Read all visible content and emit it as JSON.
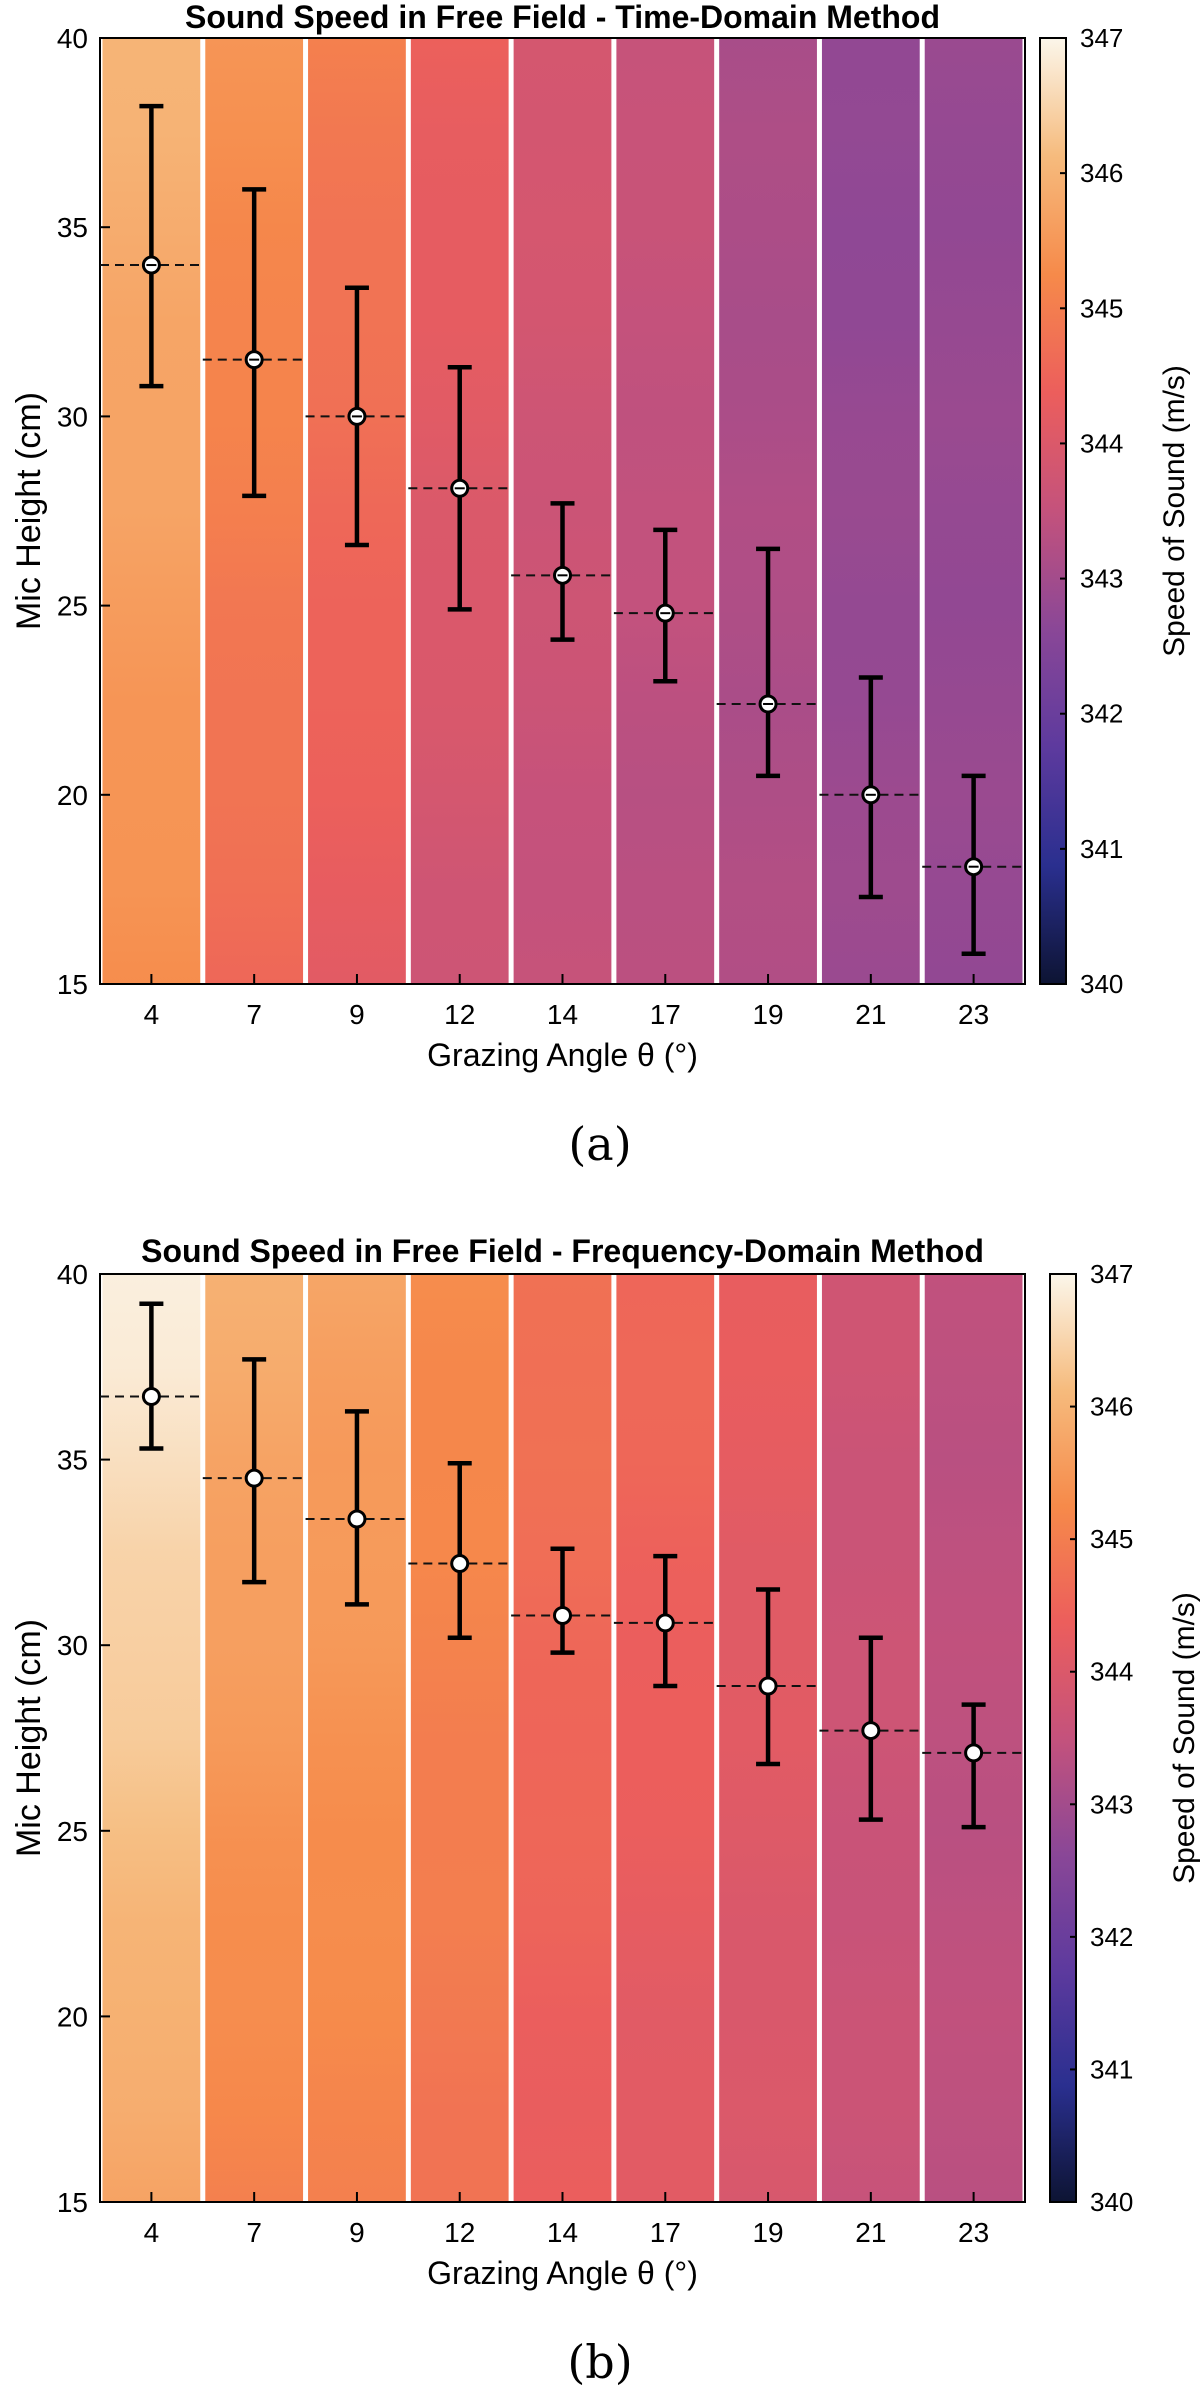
{
  "figure": {
    "panels": [
      {
        "caption": "(a)"
      },
      {
        "caption": "(b)"
      }
    ]
  },
  "chart_data": [
    {
      "type": "heatmap",
      "title": "Sound Speed in Free Field - Time-Domain Method",
      "xlabel": "Grazing Angle θ (°)",
      "ylabel": "Mic Height (cm)",
      "colorbar_label": "Speed of Sound (m/s)",
      "categories": [
        "4",
        "7",
        "9",
        "12",
        "14",
        "17",
        "19",
        "21",
        "23"
      ],
      "ylim": [
        15,
        40
      ],
      "yticks": [
        15,
        20,
        25,
        30,
        35,
        40
      ],
      "clim": [
        340,
        347
      ],
      "cticks": [
        340,
        341,
        342,
        343,
        344,
        345,
        346,
        347
      ],
      "colormap": [
        "#0d1433",
        "#2a2f8f",
        "#5d3a9e",
        "#8a4797",
        "#c4527c",
        "#ec5e5c",
        "#f68a4a",
        "#f6bb7d",
        "#fbf6ea"
      ],
      "column_speed_top": [
        346.0,
        345.4,
        345.0,
        344.4,
        343.9,
        343.6,
        343.1,
        342.7,
        342.8
      ],
      "column_speed_bottom": [
        345.3,
        344.6,
        344.2,
        343.7,
        343.5,
        343.3,
        343.2,
        342.9,
        342.8
      ],
      "series": [
        {
          "mean": [
            34.0,
            31.5,
            30.0,
            28.1,
            25.8,
            24.8,
            22.4,
            20.0,
            18.1
          ],
          "lower": [
            30.8,
            27.9,
            26.6,
            24.9,
            24.1,
            23.0,
            20.5,
            17.3,
            15.8
          ],
          "upper": [
            38.2,
            36.0,
            33.4,
            31.3,
            27.7,
            27.0,
            26.5,
            23.1,
            20.5
          ]
        }
      ],
      "marker": "white circle with minus sign",
      "reference_lines": "dashed horizontal at mean height",
      "grid": false
    },
    {
      "type": "heatmap",
      "title": "Sound Speed in Free Field - Frequency-Domain Method",
      "xlabel": "Grazing Angle θ (°)",
      "ylabel": "Mic Height (cm)",
      "colorbar_label": "Speed of Sound (m/s)",
      "categories": [
        "4",
        "7",
        "9",
        "12",
        "14",
        "17",
        "19",
        "21",
        "23"
      ],
      "ylim": [
        15,
        40
      ],
      "yticks": [
        15,
        20,
        25,
        30,
        35,
        40
      ],
      "clim": [
        340,
        347
      ],
      "cticks": [
        340,
        341,
        342,
        343,
        344,
        345,
        346,
        347
      ],
      "colormap": [
        "#0d1433",
        "#2a2f8f",
        "#5d3a9e",
        "#8a4797",
        "#c4527c",
        "#ec5e5c",
        "#f68a4a",
        "#f6bb7d",
        "#fbf6ea"
      ],
      "column_speed_top": [
        346.9,
        345.9,
        345.7,
        345.3,
        344.8,
        344.6,
        344.3,
        343.7,
        343.4
      ],
      "column_speed_bottom": [
        345.7,
        345.1,
        345.1,
        344.8,
        344.3,
        344.1,
        343.9,
        343.6,
        343.4
      ],
      "series": [
        {
          "mean": [
            36.7,
            34.5,
            33.4,
            32.2,
            30.8,
            30.6,
            28.9,
            27.7,
            27.1
          ],
          "lower": [
            35.3,
            31.7,
            31.1,
            30.2,
            29.8,
            28.9,
            26.8,
            25.3,
            25.1
          ],
          "upper": [
            39.2,
            37.7,
            36.3,
            34.9,
            32.6,
            32.4,
            31.5,
            30.2,
            28.4
          ]
        }
      ],
      "marker": "white circle",
      "reference_lines": "dashed horizontal at mean height",
      "grid": false
    }
  ]
}
